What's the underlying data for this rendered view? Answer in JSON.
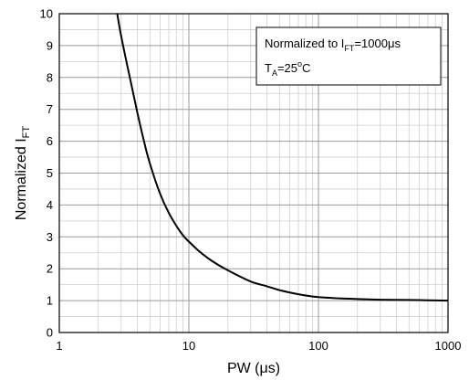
{
  "chart_data": {
    "type": "line",
    "xscale": "log",
    "xlim": [
      1,
      1000
    ],
    "ylim": [
      0,
      10
    ],
    "grid": true,
    "xlabel": {
      "main": "PW (",
      "greek": "μ",
      "tail": "s)"
    },
    "ylabel": {
      "main": "Normalized I",
      "sub": "FT"
    },
    "x_ticks": [
      1,
      10,
      100,
      1000
    ],
    "x_tick_labels": [
      "1",
      "10",
      "100",
      "1000"
    ],
    "y_ticks": [
      0,
      1,
      2,
      3,
      4,
      5,
      6,
      7,
      8,
      9,
      10
    ],
    "y_tick_labels": [
      "0",
      "1",
      "2",
      "3",
      "4",
      "5",
      "6",
      "7",
      "8",
      "9",
      "10"
    ],
    "series": [
      {
        "x": [
          2.8,
          3,
          3.5,
          4,
          4.5,
          5,
          6,
          7,
          8,
          9,
          10,
          12,
          15,
          20,
          30,
          40,
          50,
          70,
          100,
          150,
          200,
          300,
          500,
          700,
          1000
        ],
        "y": [
          10.0,
          9.3,
          8.0,
          6.9,
          6.0,
          5.3,
          4.35,
          3.75,
          3.35,
          3.05,
          2.85,
          2.55,
          2.25,
          1.95,
          1.6,
          1.45,
          1.33,
          1.2,
          1.11,
          1.07,
          1.05,
          1.03,
          1.02,
          1.01,
          1.0
        ]
      }
    ],
    "annotation": {
      "line1": {
        "prefix": "Normalized to I",
        "sub": "FT",
        "suffix": "=1000",
        "unit_greek": "μ",
        "unit_tail": "s"
      },
      "line2": {
        "prefix": "T",
        "sub": "A",
        "suffix": "=25",
        "sup": "o",
        "tail": "C"
      }
    }
  }
}
